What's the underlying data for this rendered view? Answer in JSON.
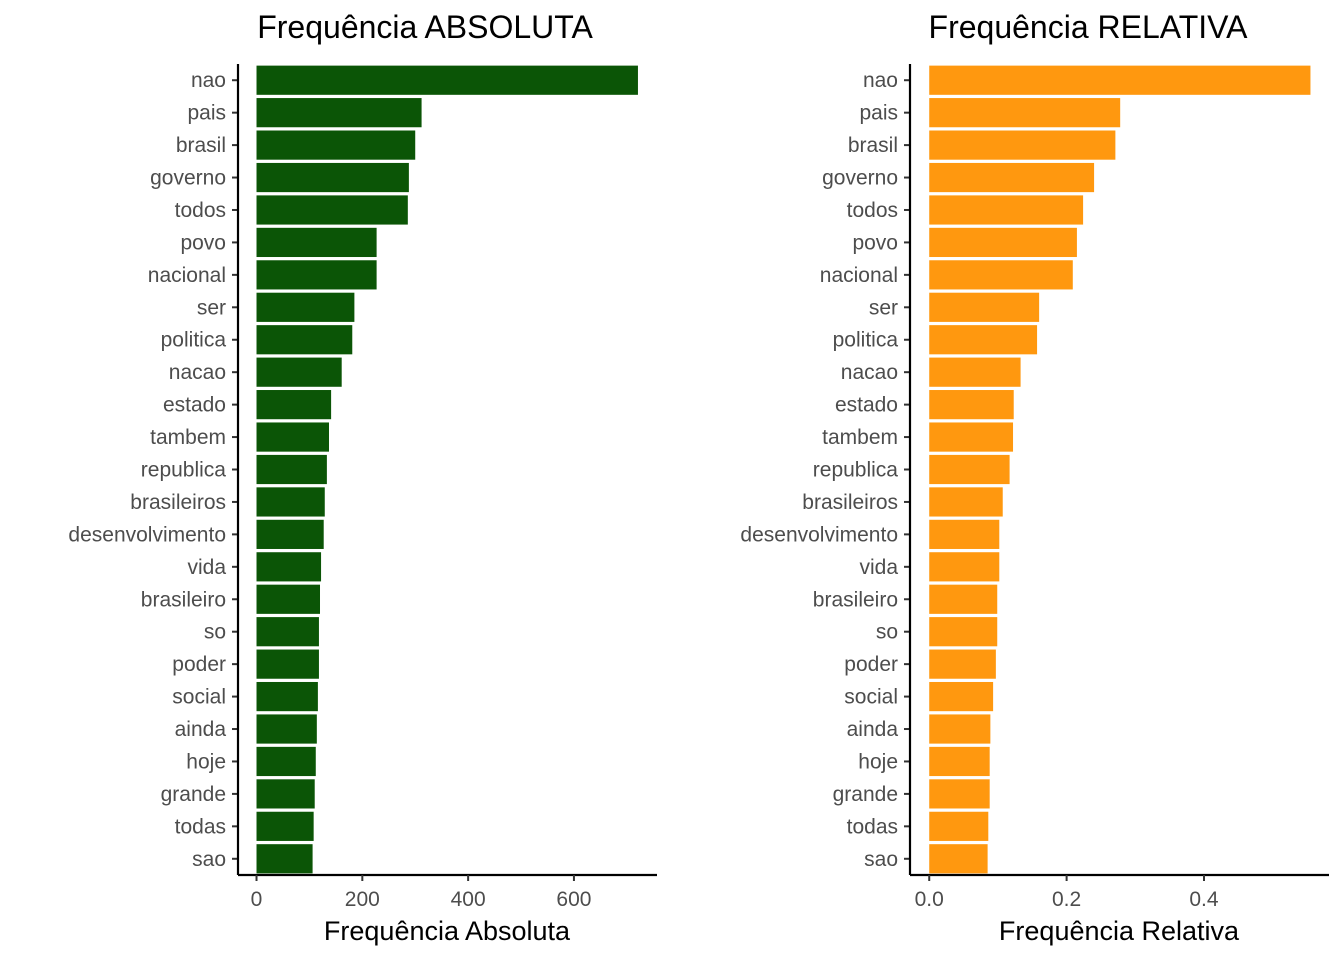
{
  "chart_data": [
    {
      "type": "bar",
      "orientation": "horizontal",
      "title": "Frequência ABSOLUTA",
      "xlabel": "Frequência Absoluta",
      "ylabel": "",
      "xlim": [
        -35,
        757
      ],
      "xticks": [
        0,
        200,
        400,
        600
      ],
      "xtick_labels": [
        "0",
        "200",
        "400",
        "600"
      ],
      "grid": false,
      "bar_color": "#0B5506",
      "categories": [
        "nao",
        "pais",
        "brasil",
        "governo",
        "todos",
        "povo",
        "nacional",
        "ser",
        "politica",
        "nacao",
        "estado",
        "tambem",
        "republica",
        "brasileiros",
        "desenvolvimento",
        "vida",
        "brasileiro",
        "so",
        "poder",
        "social",
        "ainda",
        "hoje",
        "grande",
        "todas",
        "sao"
      ],
      "values": [
        721,
        312,
        300,
        288,
        286,
        227,
        227,
        185,
        181,
        161,
        141,
        137,
        133,
        129,
        127,
        122,
        120,
        118,
        118,
        116,
        114,
        112,
        110,
        108,
        106
      ]
    },
    {
      "type": "bar",
      "orientation": "horizontal",
      "title": "Frequência RELATIVA",
      "xlabel": "Frequência Relativa",
      "ylabel": "",
      "xlim": [
        -0.028,
        0.582
      ],
      "xticks": [
        0.0,
        0.2,
        0.4
      ],
      "xtick_labels": [
        "0.0",
        "0.2",
        "0.4"
      ],
      "grid": false,
      "bar_color": "#FF980F",
      "categories": [
        "nao",
        "pais",
        "brasil",
        "governo",
        "todos",
        "povo",
        "nacional",
        "ser",
        "politica",
        "nacao",
        "estado",
        "tambem",
        "republica",
        "brasileiros",
        "desenvolvimento",
        "vida",
        "brasileiro",
        "so",
        "poder",
        "social",
        "ainda",
        "hoje",
        "grande",
        "todas",
        "sao"
      ],
      "values": [
        0.555,
        0.278,
        0.271,
        0.24,
        0.224,
        0.215,
        0.209,
        0.16,
        0.157,
        0.133,
        0.123,
        0.122,
        0.117,
        0.107,
        0.102,
        0.102,
        0.099,
        0.099,
        0.097,
        0.093,
        0.089,
        0.088,
        0.088,
        0.086,
        0.085
      ]
    }
  ]
}
